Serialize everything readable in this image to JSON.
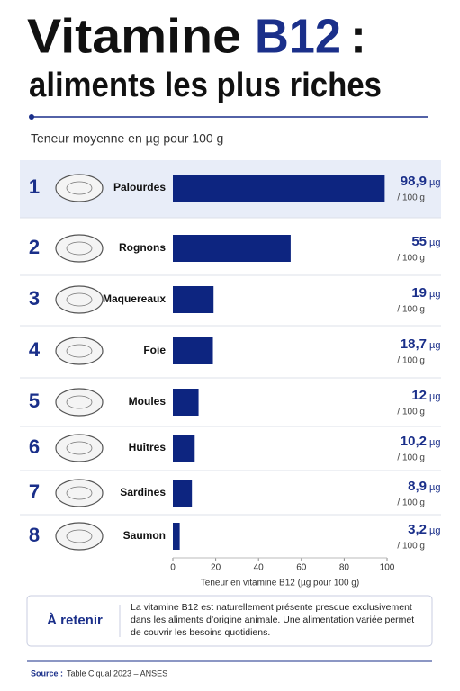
{
  "chart_data": {
    "type": "bar",
    "orientation": "horizontal",
    "title_prefix": "Vitamine",
    "title_highlight": "B12",
    "title_suffix": ":",
    "subtitle": "aliments les plus riches",
    "description": "Teneur moyenne en µg pour 100 g",
    "ranks": [
      "1",
      "2",
      "3",
      "4",
      "5",
      "6",
      "7",
      "8"
    ],
    "categories": [
      "Palourdes",
      "Rognons",
      "Maquereaux",
      "Foie",
      "Moules",
      "Huîtres",
      "Sardines",
      "Saumon"
    ],
    "values": [
      98.9,
      55,
      19,
      18.7,
      12,
      10.2,
      8.9,
      3.2
    ],
    "value_labels": [
      "98,9",
      "55",
      "19",
      "18,7",
      "12",
      "10,2",
      "8,9",
      "3,2"
    ],
    "value_unit": "µg",
    "value_per": "/ 100 g",
    "color": "#0d2580",
    "xlim": [
      0,
      100
    ],
    "xticks": [
      0,
      20,
      40,
      60,
      80,
      100
    ],
    "xlabel": "Teneur en vitamine B12 (µg pour 100 g)",
    "highlight_rank_index": 0,
    "note_title": "À retenir",
    "note_text": "La vitamine B12 est naturellement présente presque exclusivement dans les aliments d’origine animale. Une alimentation variée permet de couvrir les besoins quotidiens.",
    "source_label": "Source :",
    "source_text": "Table Ciqual 2023 – ANSES"
  }
}
